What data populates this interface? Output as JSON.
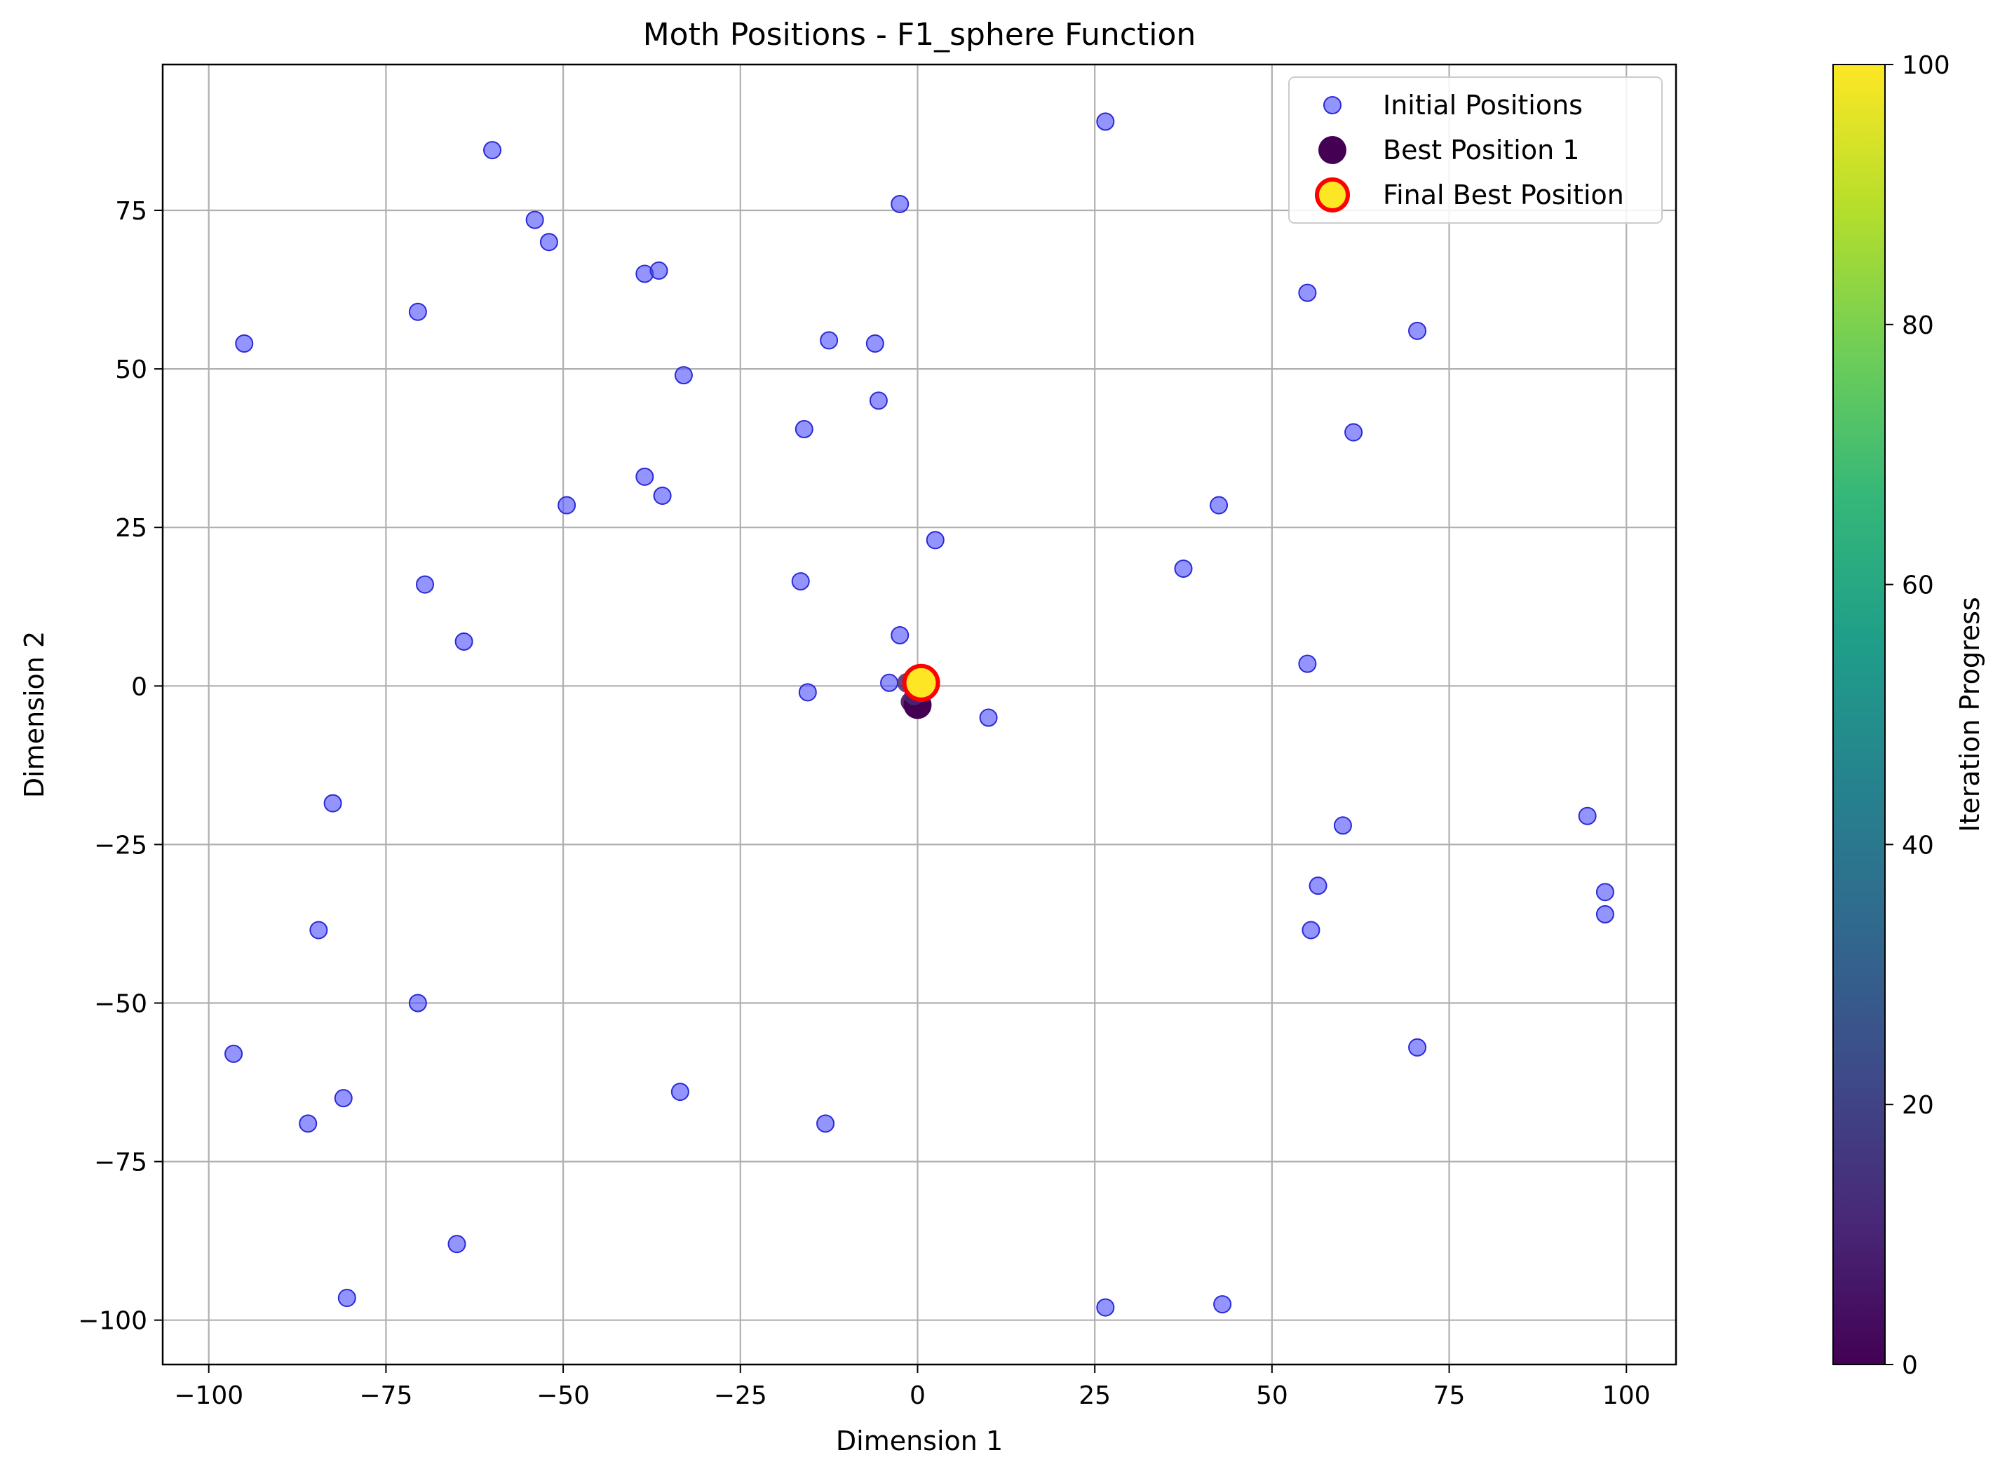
{
  "chart_data": {
    "type": "scatter",
    "title": "Moth Positions - F1_sphere Function",
    "xlabel": "Dimension 1",
    "ylabel": "Dimension 2",
    "xlim": [
      -106.5,
      107
    ],
    "ylim": [
      -107,
      98
    ],
    "x_ticks": [
      -100,
      -75,
      -50,
      -25,
      0,
      25,
      50,
      75,
      100
    ],
    "y_ticks": [
      -100,
      -75,
      -50,
      -25,
      0,
      25,
      50,
      75
    ],
    "x_tick_labels": [
      "−100",
      "−75",
      "−50",
      "−25",
      "0",
      "25",
      "50",
      "75",
      "100"
    ],
    "y_tick_labels": [
      "−100",
      "−75",
      "−50",
      "−25",
      "0",
      "25",
      "50",
      "75"
    ],
    "grid": true,
    "legend_position": "top-right",
    "series": [
      {
        "name": "Initial Positions",
        "color": "#4d4dff",
        "edge_color": "#2a2ad6",
        "points": [
          [
            26.5,
            89
          ],
          [
            -60,
            84.5
          ],
          [
            -2.5,
            76
          ],
          [
            -54,
            73.5
          ],
          [
            -52,
            70
          ],
          [
            -38.5,
            65
          ],
          [
            -36.5,
            65.5
          ],
          [
            55,
            62
          ],
          [
            -70.5,
            59
          ],
          [
            70.5,
            56
          ],
          [
            -95,
            54
          ],
          [
            -12.5,
            54.5
          ],
          [
            -6,
            54
          ],
          [
            -33,
            49
          ],
          [
            -5.5,
            45
          ],
          [
            61.5,
            40
          ],
          [
            -16,
            40.5
          ],
          [
            -49.5,
            28.5
          ],
          [
            42.5,
            28.5
          ],
          [
            -38.5,
            33
          ],
          [
            -36,
            30
          ],
          [
            2.5,
            23
          ],
          [
            37.5,
            18.5
          ],
          [
            -69.5,
            16
          ],
          [
            -16.5,
            16.5
          ],
          [
            -64,
            7
          ],
          [
            -2.5,
            8
          ],
          [
            55,
            3.5
          ],
          [
            -4,
            0.5
          ],
          [
            -15.5,
            -1
          ],
          [
            10,
            -5
          ],
          [
            -82.5,
            -18.5
          ],
          [
            60,
            -22
          ],
          [
            94.5,
            -20.5
          ],
          [
            56.5,
            -31.5
          ],
          [
            97,
            -32.5
          ],
          [
            55.5,
            -38.5
          ],
          [
            97,
            -36
          ],
          [
            -84.5,
            -38.5
          ],
          [
            -70.5,
            -50
          ],
          [
            70.5,
            -57
          ],
          [
            -96.5,
            -58
          ],
          [
            -33.5,
            -64
          ],
          [
            -81,
            -65
          ],
          [
            -86,
            -69
          ],
          [
            -13,
            -69
          ],
          [
            -65,
            -88
          ],
          [
            -80.5,
            -96.5
          ],
          [
            26.5,
            -98
          ],
          [
            43,
            -97.5
          ]
        ]
      },
      {
        "name": "Best Position 1",
        "color": "#440154",
        "points": [
          [
            0,
            -3
          ]
        ]
      },
      {
        "name": "Final Best Position",
        "color": "#fde725",
        "edge_color": "#ff0000",
        "points": [
          [
            0.5,
            0.5
          ]
        ]
      }
    ],
    "trajectory": {
      "points": [
        [
          -1,
          -2.5
        ],
        [
          -0.5,
          -1.5
        ],
        [
          -1.5,
          0.5
        ],
        [
          -0.5,
          0.5
        ],
        [
          0.5,
          1.5
        ],
        [
          0.5,
          -1
        ],
        [
          0,
          0.3
        ]
      ]
    },
    "colorbar": {
      "label": "Iteration Progress",
      "range": [
        0,
        100
      ],
      "ticks": [
        0,
        20,
        40,
        60,
        80,
        100
      ],
      "tick_labels": [
        "0",
        "20",
        "40",
        "60",
        "80",
        "100"
      ],
      "colormap": [
        "#440154",
        "#482878",
        "#3e4a89",
        "#31688e",
        "#26828e",
        "#1f9e89",
        "#35b779",
        "#6ece58",
        "#b5de2b",
        "#fde725"
      ]
    }
  }
}
